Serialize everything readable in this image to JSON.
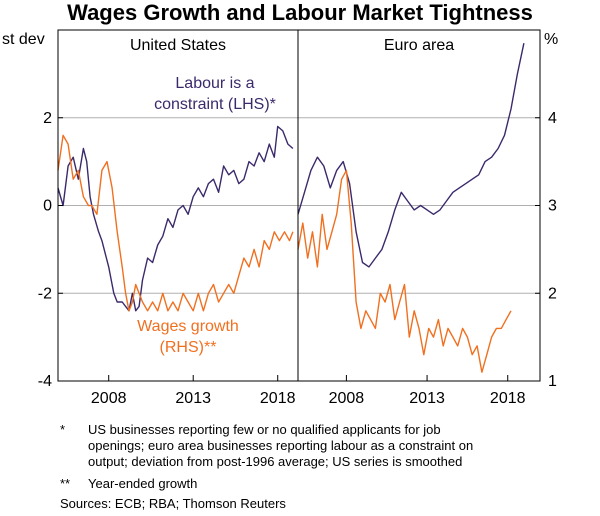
{
  "chart_data": {
    "type": "line",
    "title": "Wages Growth and Labour Market Tightness",
    "left_axis": {
      "label": "st dev",
      "range": [
        -4,
        4
      ],
      "ticks": [
        "2",
        "0",
        "-2",
        "-4"
      ],
      "tick_values": [
        2,
        0,
        -2,
        -4
      ]
    },
    "right_axis": {
      "label": "%",
      "range": [
        1,
        5
      ],
      "ticks": [
        "4",
        "3",
        "2",
        "1"
      ],
      "tick_values": [
        4,
        3,
        2,
        1
      ]
    },
    "x_ticks": [
      "2008",
      "2013",
      "2018"
    ],
    "x_tick_values": [
      2008,
      2013,
      2018
    ],
    "panels": [
      {
        "name": "United States",
        "xlim": [
          2005,
          2019.2
        ],
        "series": [
          {
            "name": "Labour is a constraint (LHS)*",
            "label_lines": [
              "Labour is a",
              "constraint (LHS)*"
            ],
            "axis": "left",
            "color": "#3b2a6b",
            "x": [
              2005.0,
              2005.3,
              2005.6,
              2005.9,
              2006.2,
              2006.5,
              2006.7,
              2006.9,
              2007.1,
              2007.4,
              2007.6,
              2007.8,
              2008.0,
              2008.3,
              2008.5,
              2008.8,
              2009.0,
              2009.2,
              2009.4,
              2009.6,
              2009.8,
              2010.0,
              2010.3,
              2010.6,
              2010.9,
              2011.2,
              2011.5,
              2011.8,
              2012.1,
              2012.4,
              2012.7,
              2013.0,
              2013.3,
              2013.6,
              2013.9,
              2014.2,
              2014.5,
              2014.8,
              2015.1,
              2015.4,
              2015.7,
              2016.0,
              2016.3,
              2016.6,
              2016.9,
              2017.2,
              2017.5,
              2017.8,
              2018.0,
              2018.3,
              2018.6,
              2018.9
            ],
            "values": [
              0.4,
              0.0,
              0.9,
              1.1,
              0.6,
              1.3,
              1.0,
              0.2,
              -0.2,
              -0.6,
              -0.8,
              -1.1,
              -1.4,
              -2.0,
              -2.2,
              -2.2,
              -2.3,
              -2.4,
              -2.0,
              -2.4,
              -2.3,
              -1.7,
              -1.2,
              -1.3,
              -0.9,
              -0.7,
              -0.3,
              -0.5,
              -0.1,
              0.0,
              -0.2,
              0.2,
              0.4,
              0.2,
              0.5,
              0.6,
              0.3,
              0.9,
              0.7,
              0.8,
              0.5,
              0.6,
              1.0,
              0.9,
              1.2,
              1.0,
              1.4,
              1.1,
              1.8,
              1.7,
              1.4,
              1.3
            ]
          },
          {
            "name": "Wages growth (RHS)**",
            "label_lines": [
              "Wages growth",
              "(RHS)**"
            ],
            "axis": "right",
            "color": "#f07020",
            "x": [
              2005.0,
              2005.3,
              2005.6,
              2005.9,
              2006.2,
              2006.5,
              2006.8,
              2007.0,
              2007.3,
              2007.6,
              2007.9,
              2008.2,
              2008.5,
              2008.8,
              2009.0,
              2009.2,
              2009.4,
              2009.6,
              2009.8,
              2010.0,
              2010.3,
              2010.6,
              2010.9,
              2011.2,
              2011.5,
              2011.8,
              2012.1,
              2012.4,
              2012.7,
              2013.0,
              2013.3,
              2013.6,
              2013.9,
              2014.2,
              2014.5,
              2014.8,
              2015.1,
              2015.4,
              2015.7,
              2016.0,
              2016.3,
              2016.6,
              2016.9,
              2017.2,
              2017.5,
              2017.8,
              2018.1,
              2018.4,
              2018.7,
              2018.9
            ],
            "values": [
              3.4,
              3.8,
              3.7,
              3.3,
              3.4,
              3.1,
              3.0,
              3.0,
              2.9,
              3.4,
              3.5,
              3.2,
              2.7,
              2.3,
              2.0,
              1.8,
              1.9,
              2.1,
              2.0,
              1.9,
              1.8,
              1.9,
              1.8,
              2.0,
              1.8,
              1.9,
              1.8,
              2.0,
              1.9,
              1.8,
              2.0,
              1.8,
              2.0,
              2.1,
              1.9,
              2.0,
              2.1,
              2.0,
              2.2,
              2.4,
              2.3,
              2.5,
              2.3,
              2.6,
              2.5,
              2.7,
              2.6,
              2.7,
              2.6,
              2.7
            ]
          }
        ]
      },
      {
        "name": "Euro area",
        "xlim": [
          2005,
          2020
        ],
        "series": [
          {
            "name": "Labour is a constraint (LHS)*",
            "axis": "left",
            "color": "#3b2a6b",
            "x": [
              2005.0,
              2005.4,
              2005.8,
              2006.2,
              2006.6,
              2007.0,
              2007.4,
              2007.8,
              2008.2,
              2008.6,
              2009.0,
              2009.4,
              2009.8,
              2010.2,
              2010.6,
              2011.0,
              2011.4,
              2011.8,
              2012.2,
              2012.6,
              2013.0,
              2013.4,
              2013.8,
              2014.2,
              2014.6,
              2015.0,
              2015.4,
              2015.8,
              2016.2,
              2016.6,
              2017.0,
              2017.4,
              2017.8,
              2018.2,
              2018.6,
              2019.0
            ],
            "values": [
              -0.2,
              0.3,
              0.8,
              1.1,
              0.9,
              0.4,
              0.8,
              1.0,
              0.5,
              -0.6,
              -1.3,
              -1.4,
              -1.2,
              -1.0,
              -0.6,
              -0.1,
              0.3,
              0.1,
              -0.1,
              0.0,
              -0.1,
              -0.2,
              -0.1,
              0.1,
              0.3,
              0.4,
              0.5,
              0.6,
              0.7,
              1.0,
              1.1,
              1.3,
              1.6,
              2.2,
              3.0,
              3.7
            ]
          },
          {
            "name": "Wages growth (RHS)**",
            "axis": "right",
            "color": "#f07020",
            "x": [
              2005.0,
              2005.3,
              2005.6,
              2005.9,
              2006.2,
              2006.5,
              2006.8,
              2007.1,
              2007.4,
              2007.7,
              2008.0,
              2008.3,
              2008.6,
              2008.9,
              2009.2,
              2009.5,
              2009.8,
              2010.1,
              2010.4,
              2010.7,
              2011.0,
              2011.3,
              2011.6,
              2011.9,
              2012.2,
              2012.5,
              2012.8,
              2013.1,
              2013.4,
              2013.7,
              2014.0,
              2014.3,
              2014.6,
              2014.9,
              2015.2,
              2015.5,
              2015.8,
              2016.1,
              2016.4,
              2016.7,
              2017.0,
              2017.3,
              2017.6,
              2017.9,
              2018.2
            ],
            "values": [
              2.5,
              2.8,
              2.4,
              2.7,
              2.3,
              2.9,
              2.5,
              2.7,
              2.9,
              3.3,
              3.4,
              2.8,
              1.9,
              1.6,
              1.8,
              1.7,
              1.6,
              2.0,
              1.9,
              2.1,
              1.7,
              1.9,
              2.1,
              1.5,
              1.8,
              1.6,
              1.3,
              1.6,
              1.5,
              1.7,
              1.4,
              1.6,
              1.5,
              1.4,
              1.6,
              1.5,
              1.3,
              1.4,
              1.1,
              1.3,
              1.5,
              1.6,
              1.6,
              1.7,
              1.8
            ]
          }
        ]
      }
    ]
  },
  "notes": [
    {
      "mark": "*",
      "lines": [
        "US businesses reporting few or no qualified applicants for job",
        "openings; euro area businesses reporting labour as a constraint on",
        "output; deviation from post-1996 average; US series is smoothed"
      ]
    },
    {
      "mark": "**",
      "lines": [
        "Year-ended growth"
      ]
    }
  ],
  "sources": "Sources:   ECB; RBA; Thomson Reuters",
  "colors": {
    "labour": "#3b2a6b",
    "wages": "#f07020",
    "grid": "#b0b0b0",
    "frame": "#000000"
  }
}
